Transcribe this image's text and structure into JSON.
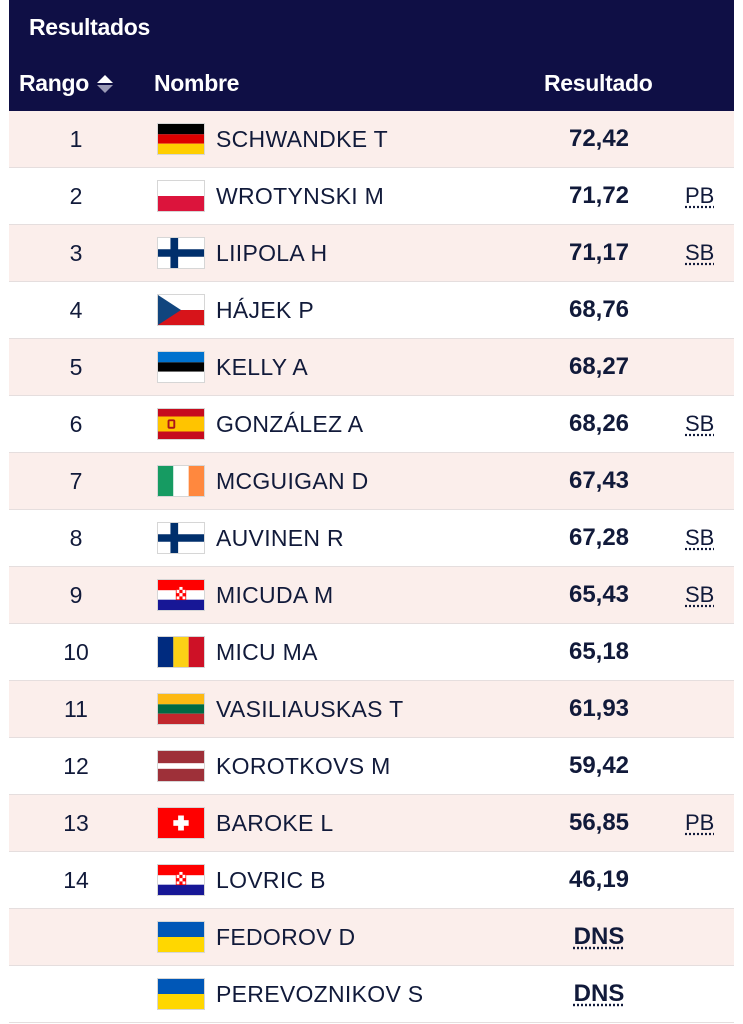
{
  "header": {
    "title": "Resultados",
    "col_rank": "Rango",
    "col_name": "Nombre",
    "col_result": "Resultado",
    "colors": {
      "background": "#0f0f45",
      "text": "#ffffff"
    }
  },
  "rows": [
    {
      "rank": "1",
      "flag": "germany-flag-icon",
      "name": "SCHWANDKE T",
      "result": "72,42",
      "note": ""
    },
    {
      "rank": "2",
      "flag": "poland-flag-icon",
      "name": "WROTYNSKI M",
      "result": "71,72",
      "note": "PB"
    },
    {
      "rank": "3",
      "flag": "finland-flag-icon",
      "name": "LIIPOLA H",
      "result": "71,17",
      "note": "SB"
    },
    {
      "rank": "4",
      "flag": "czechia-flag-icon",
      "name": "HÁJEK P",
      "result": "68,76",
      "note": ""
    },
    {
      "rank": "5",
      "flag": "estonia-flag-icon",
      "name": "KELLY A",
      "result": "68,27",
      "note": ""
    },
    {
      "rank": "6",
      "flag": "spain-flag-icon",
      "name": "GONZÁLEZ A",
      "result": "68,26",
      "note": "SB"
    },
    {
      "rank": "7",
      "flag": "ireland-flag-icon",
      "name": "MCGUIGAN D",
      "result": "67,43",
      "note": ""
    },
    {
      "rank": "8",
      "flag": "finland-flag-icon",
      "name": "AUVINEN R",
      "result": "67,28",
      "note": "SB"
    },
    {
      "rank": "9",
      "flag": "croatia-flag-icon",
      "name": "MICUDA M",
      "result": "65,43",
      "note": "SB"
    },
    {
      "rank": "10",
      "flag": "romania-flag-icon",
      "name": "MICU MA",
      "result": "65,18",
      "note": ""
    },
    {
      "rank": "11",
      "flag": "lithuania-flag-icon",
      "name": "VASILIAUSKAS T",
      "result": "61,93",
      "note": ""
    },
    {
      "rank": "12",
      "flag": "latvia-flag-icon",
      "name": "KOROTKOVS M",
      "result": "59,42",
      "note": ""
    },
    {
      "rank": "13",
      "flag": "switzerland-flag-icon",
      "name": "BAROKE L",
      "result": "56,85",
      "note": "PB"
    },
    {
      "rank": "14",
      "flag": "croatia-flag-icon",
      "name": "LOVRIC B",
      "result": "46,19",
      "note": ""
    },
    {
      "rank": "",
      "flag": "ukraine-flag-icon",
      "name": "FEDOROV D",
      "result": "DNS",
      "note": ""
    },
    {
      "rank": "",
      "flag": "ukraine-flag-icon",
      "name": "PEREVOZNIKOV S",
      "result": "DNS",
      "note": ""
    }
  ],
  "colors": {
    "row_shaded": "#fbeeeb",
    "row_plain": "#ffffff",
    "text": "#111a3a"
  }
}
